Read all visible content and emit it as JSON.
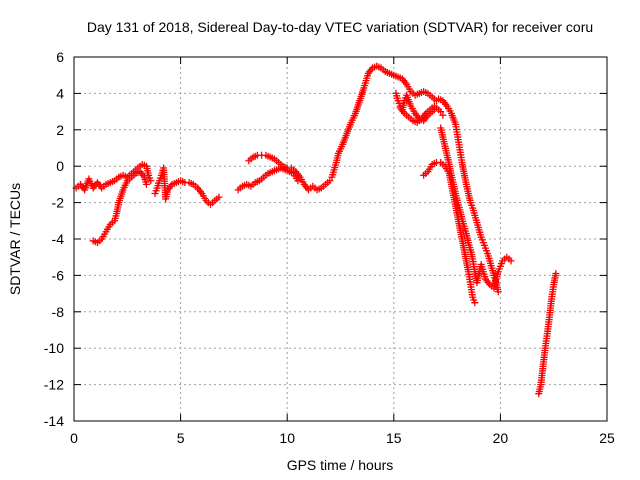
{
  "chart_data": {
    "type": "scatter",
    "title": "Day 131 of 2018, Sidereal Day-to-day VTEC variation (SDTVAR) for receiver coru",
    "xlabel": "GPS time / hours",
    "ylabel": "SDTVAR / TECUs",
    "xlim": [
      0,
      25
    ],
    "ylim": [
      -14,
      6
    ],
    "xticks": [
      0,
      5,
      10,
      15,
      20,
      25
    ],
    "yticks": [
      -14,
      -12,
      -10,
      -8,
      -6,
      -4,
      -2,
      0,
      2,
      4,
      6
    ],
    "grid": true,
    "marker": "plus",
    "color": "#ff0000",
    "series": [
      {
        "points": [
          [
            0.1,
            -1.2
          ],
          [
            0.3,
            -1.0
          ],
          [
            0.5,
            -1.3
          ],
          [
            0.7,
            -0.7
          ],
          [
            0.9,
            -1.2
          ],
          [
            1.1,
            -0.9
          ],
          [
            1.3,
            -1.2
          ],
          [
            1.5,
            -1.0
          ],
          [
            1.7,
            -0.9
          ],
          [
            1.9,
            -0.8
          ],
          [
            2.1,
            -0.6
          ],
          [
            2.3,
            -0.5
          ],
          [
            2.5,
            -0.6
          ],
          [
            2.7,
            -0.4
          ],
          [
            2.9,
            -0.2
          ],
          [
            3.0,
            -0.1
          ],
          [
            3.2,
            0.1
          ],
          [
            3.4,
            0.0
          ],
          [
            3.5,
            -0.5
          ],
          [
            3.6,
            -0.8
          ]
        ]
      },
      {
        "points": [
          [
            0.9,
            -4.1
          ],
          [
            1.1,
            -4.2
          ],
          [
            1.3,
            -4.0
          ],
          [
            1.5,
            -3.6
          ],
          [
            1.7,
            -3.2
          ],
          [
            1.9,
            -3.0
          ],
          [
            2.0,
            -2.6
          ],
          [
            2.1,
            -2.0
          ],
          [
            2.3,
            -1.3
          ],
          [
            2.5,
            -0.8
          ],
          [
            2.7,
            -0.6
          ],
          [
            2.9,
            -0.4
          ],
          [
            3.1,
            -0.3
          ],
          [
            3.3,
            -0.6
          ],
          [
            3.4,
            -1.0
          ]
        ]
      },
      {
        "points": [
          [
            3.8,
            -1.5
          ],
          [
            3.9,
            -1.2
          ],
          [
            4.0,
            -0.8
          ],
          [
            4.1,
            -0.5
          ],
          [
            4.2,
            -0.1
          ],
          [
            4.3,
            -1.8
          ],
          [
            4.4,
            -1.3
          ],
          [
            4.6,
            -1.0
          ],
          [
            4.8,
            -0.9
          ],
          [
            5.0,
            -0.8
          ],
          [
            5.2,
            -0.9
          ],
          [
            5.4,
            -0.9
          ],
          [
            5.6,
            -1.0
          ],
          [
            5.8,
            -1.2
          ],
          [
            6.0,
            -1.5
          ],
          [
            6.2,
            -1.9
          ],
          [
            6.4,
            -2.1
          ],
          [
            6.6,
            -1.9
          ],
          [
            6.8,
            -1.7
          ]
        ]
      },
      {
        "points": [
          [
            7.7,
            -1.3
          ],
          [
            7.9,
            -1.1
          ],
          [
            8.1,
            -1.0
          ],
          [
            8.3,
            -1.1
          ],
          [
            8.5,
            -0.9
          ],
          [
            8.7,
            -0.8
          ],
          [
            8.9,
            -0.6
          ],
          [
            9.1,
            -0.4
          ],
          [
            9.3,
            -0.3
          ],
          [
            9.5,
            -0.2
          ],
          [
            9.7,
            -0.1
          ],
          [
            9.9,
            -0.2
          ],
          [
            10.1,
            -0.3
          ],
          [
            10.3,
            -0.4
          ],
          [
            10.5,
            -0.8
          ]
        ]
      },
      {
        "points": [
          [
            8.2,
            0.3
          ],
          [
            8.4,
            0.5
          ],
          [
            8.6,
            0.6
          ],
          [
            8.8,
            0.6
          ],
          [
            9.0,
            0.6
          ],
          [
            9.2,
            0.5
          ],
          [
            9.4,
            0.4
          ],
          [
            9.6,
            0.2
          ],
          [
            9.8,
            0.0
          ],
          [
            10.0,
            -0.1
          ],
          [
            10.2,
            -0.1
          ],
          [
            10.4,
            -0.3
          ],
          [
            10.6,
            -0.6
          ],
          [
            10.8,
            -1.0
          ],
          [
            11.0,
            -1.3
          ],
          [
            11.2,
            -1.1
          ],
          [
            11.4,
            -1.3
          ],
          [
            11.6,
            -1.2
          ],
          [
            11.8,
            -1.0
          ],
          [
            12.0,
            -0.8
          ],
          [
            12.1,
            -0.6
          ],
          [
            12.2,
            -0.2
          ],
          [
            12.3,
            0.2
          ],
          [
            12.4,
            0.7
          ],
          [
            12.6,
            1.2
          ],
          [
            12.8,
            1.8
          ],
          [
            13.0,
            2.4
          ],
          [
            13.2,
            2.9
          ],
          [
            13.4,
            3.6
          ],
          [
            13.6,
            4.3
          ],
          [
            13.8,
            5.1
          ],
          [
            14.0,
            5.4
          ],
          [
            14.2,
            5.5
          ],
          [
            14.4,
            5.4
          ],
          [
            14.6,
            5.2
          ],
          [
            14.8,
            5.1
          ],
          [
            15.0,
            5.0
          ],
          [
            15.2,
            4.9
          ],
          [
            15.4,
            4.8
          ],
          [
            15.6,
            4.5
          ],
          [
            15.8,
            4.1
          ],
          [
            16.0,
            3.9
          ],
          [
            16.2,
            4.0
          ],
          [
            16.4,
            4.1
          ],
          [
            16.6,
            4.0
          ],
          [
            16.8,
            3.8
          ],
          [
            17.0,
            3.6
          ]
        ]
      },
      {
        "points": [
          [
            15.1,
            4.0
          ],
          [
            15.2,
            3.6
          ],
          [
            15.3,
            3.3
          ],
          [
            15.4,
            3.1
          ],
          [
            15.5,
            3.6
          ],
          [
            15.6,
            3.9
          ],
          [
            15.8,
            3.3
          ],
          [
            16.0,
            2.9
          ],
          [
            16.2,
            2.6
          ],
          [
            16.4,
            2.5
          ],
          [
            16.6,
            2.8
          ],
          [
            16.8,
            3.0
          ],
          [
            17.0,
            3.2
          ],
          [
            17.2,
            3.0
          ],
          [
            17.3,
            2.8
          ]
        ]
      },
      {
        "points": [
          [
            15.3,
            3.2
          ],
          [
            15.5,
            2.9
          ],
          [
            15.7,
            2.7
          ],
          [
            15.9,
            2.5
          ],
          [
            16.1,
            2.4
          ],
          [
            16.3,
            2.6
          ],
          [
            16.5,
            2.9
          ],
          [
            16.7,
            3.1
          ],
          [
            16.9,
            3.3
          ]
        ]
      },
      {
        "points": [
          [
            17.1,
            3.7
          ],
          [
            17.3,
            3.6
          ],
          [
            17.5,
            3.3
          ],
          [
            17.7,
            2.9
          ],
          [
            17.9,
            2.3
          ],
          [
            18.0,
            1.6
          ],
          [
            18.1,
            0.9
          ],
          [
            18.2,
            0.2
          ],
          [
            18.3,
            -0.4
          ],
          [
            18.4,
            -1.0
          ],
          [
            18.5,
            -1.5
          ],
          [
            18.6,
            -2.0
          ],
          [
            18.7,
            -2.3
          ],
          [
            18.8,
            -2.7
          ],
          [
            18.9,
            -3.1
          ],
          [
            19.0,
            -3.5
          ],
          [
            19.1,
            -3.9
          ],
          [
            19.2,
            -4.2
          ],
          [
            19.3,
            -4.5
          ],
          [
            19.4,
            -4.8
          ],
          [
            19.5,
            -5.2
          ],
          [
            19.6,
            -5.6
          ],
          [
            19.7,
            -6.0
          ],
          [
            19.8,
            -6.4
          ],
          [
            19.9,
            -6.9
          ]
        ]
      },
      {
        "points": [
          [
            17.2,
            2.1
          ],
          [
            17.3,
            1.6
          ],
          [
            17.4,
            1.1
          ],
          [
            17.5,
            0.6
          ],
          [
            17.6,
            0.1
          ],
          [
            17.7,
            -0.5
          ],
          [
            17.8,
            -1.0
          ],
          [
            17.9,
            -1.5
          ],
          [
            18.0,
            -2.0
          ],
          [
            18.1,
            -2.4
          ],
          [
            18.2,
            -2.9
          ],
          [
            18.3,
            -3.3
          ],
          [
            18.4,
            -3.7
          ],
          [
            18.5,
            -4.2
          ],
          [
            18.6,
            -4.6
          ],
          [
            18.7,
            -5.1
          ],
          [
            18.8,
            -5.8
          ],
          [
            18.9,
            -6.4
          ],
          [
            19.0,
            -5.9
          ],
          [
            19.1,
            -5.4
          ],
          [
            19.2,
            -5.8
          ],
          [
            19.3,
            -6.2
          ],
          [
            19.5,
            -6.5
          ],
          [
            19.7,
            -6.7
          ],
          [
            19.8,
            -6.2
          ],
          [
            19.9,
            -5.8
          ],
          [
            20.0,
            -5.5
          ],
          [
            20.1,
            -5.2
          ],
          [
            20.3,
            -5.0
          ],
          [
            20.5,
            -5.2
          ]
        ]
      },
      {
        "points": [
          [
            16.4,
            -0.5
          ],
          [
            16.6,
            -0.3
          ],
          [
            16.8,
            0.1
          ],
          [
            17.0,
            0.2
          ],
          [
            17.2,
            0.2
          ],
          [
            17.4,
            0.0
          ],
          [
            17.6,
            -0.4
          ],
          [
            17.7,
            -1.0
          ],
          [
            17.8,
            -1.6
          ],
          [
            17.9,
            -2.2
          ],
          [
            18.0,
            -2.8
          ],
          [
            18.1,
            -3.4
          ],
          [
            18.2,
            -4.0
          ],
          [
            18.3,
            -4.6
          ],
          [
            18.4,
            -5.2
          ],
          [
            18.5,
            -5.8
          ],
          [
            18.6,
            -6.5
          ],
          [
            18.7,
            -7.2
          ],
          [
            18.8,
            -7.5
          ]
        ]
      },
      {
        "points": [
          [
            21.8,
            -12.5
          ],
          [
            21.9,
            -12.0
          ],
          [
            22.0,
            -11.0
          ],
          [
            22.1,
            -10.0
          ],
          [
            22.2,
            -9.2
          ],
          [
            22.3,
            -8.3
          ],
          [
            22.4,
            -7.3
          ],
          [
            22.5,
            -6.5
          ],
          [
            22.6,
            -5.9
          ]
        ]
      }
    ]
  }
}
